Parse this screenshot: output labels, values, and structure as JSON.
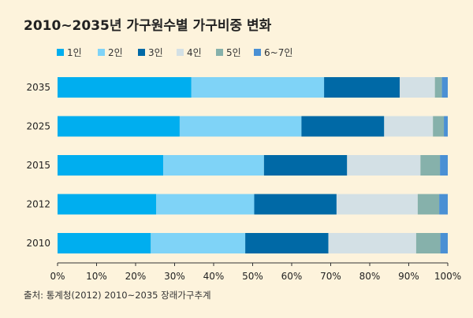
{
  "chart_data": {
    "type": "bar",
    "orientation": "horizontal",
    "stacked": true,
    "title": "2010~2035년 가구원수별 가구비중 변화",
    "categories": [
      "2035",
      "2025",
      "2015",
      "2012",
      "2010"
    ],
    "series": [
      {
        "name": "1인",
        "color": "#00aeef",
        "values": [
          34.3,
          31.3,
          27.1,
          25.3,
          23.9
        ]
      },
      {
        "name": "2인",
        "color": "#7fd3f7",
        "values": [
          34.0,
          31.2,
          25.8,
          25.1,
          24.2
        ]
      },
      {
        "name": "3인",
        "color": "#0069a6",
        "values": [
          19.4,
          21.2,
          21.3,
          21.1,
          21.3
        ]
      },
      {
        "name": "4인",
        "color": "#d3e0e5",
        "values": [
          9.0,
          12.5,
          18.8,
          20.8,
          22.5
        ]
      },
      {
        "name": "5인",
        "color": "#86b1ab",
        "values": [
          1.8,
          2.8,
          5.0,
          5.5,
          6.2
        ]
      },
      {
        "name": "6~7인",
        "color": "#4a90d4",
        "values": [
          1.5,
          1.0,
          2.0,
          2.2,
          1.9
        ]
      }
    ],
    "xlim": [
      0,
      100
    ],
    "x_ticks": [
      "0%",
      "10%",
      "20%",
      "30%",
      "40%",
      "50%",
      "60%",
      "70%",
      "80%",
      "90%",
      "100%"
    ],
    "grid": false,
    "legend": "top-left"
  },
  "source": "출처: 통계청(2012) 2010~2035 장래가구추계"
}
